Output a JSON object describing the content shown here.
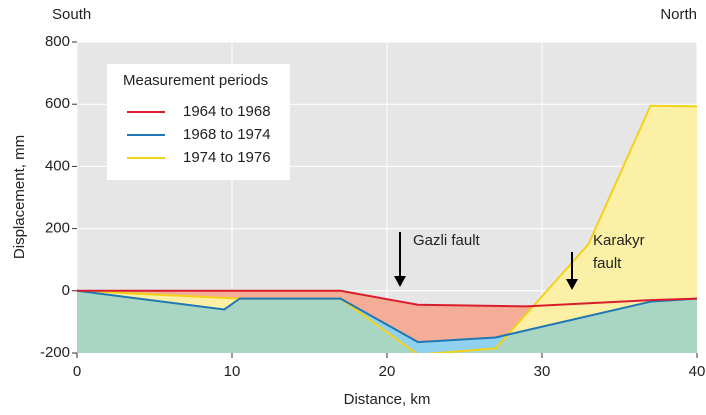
{
  "chart_data": {
    "type": "line",
    "y_label": "Displacement, mm",
    "x_label": "Distance, km",
    "left_label": "South",
    "right_label": "North",
    "legend_title": "Measurement periods",
    "annotations": [
      [
        "Gazli  fault"
      ],
      [
        "Karakyr",
        "fault"
      ]
    ],
    "xlim": [
      0,
      40
    ],
    "xticks": [
      0,
      10,
      20,
      30,
      40
    ],
    "ylim": [
      -200,
      800
    ],
    "yticks": [
      -200,
      0,
      200,
      400,
      600,
      800
    ],
    "grid": true,
    "series": [
      {
        "name": "1964 to 1968",
        "color": "#d81e2c",
        "fill": "#f4ad96",
        "x": [
          0,
          17,
          22,
          29,
          37,
          40
        ],
        "values": [
          0,
          0,
          -45,
          -50,
          -30,
          -25
        ]
      },
      {
        "name": "1968 to 1974",
        "color": "#1f78b4",
        "fill": "#8fd1ee",
        "x": [
          0,
          9.5,
          10.5,
          17,
          22,
          27,
          37,
          40
        ],
        "values": [
          0,
          -60,
          -25,
          -25,
          -165,
          -150,
          -35,
          -25
        ]
      },
      {
        "name": "1974 to 1976",
        "color": "#f2d21a",
        "fill": "#fcf0a6",
        "x": [
          0,
          10.5,
          17,
          22,
          27,
          33,
          37,
          40
        ],
        "values": [
          0,
          -25,
          -25,
          -205,
          -185,
          150,
          595,
          593
        ]
      }
    ]
  }
}
